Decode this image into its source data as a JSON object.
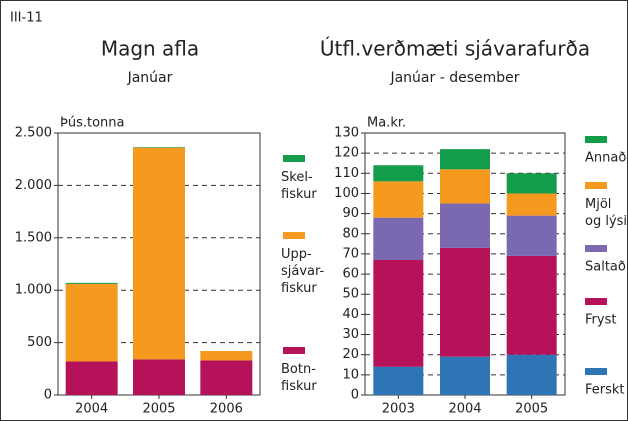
{
  "label": "III-11",
  "chart_data": [
    {
      "type": "bar",
      "stacked": true,
      "title": "Magn afla",
      "subtitle": "Janúar",
      "y_label": "Þús.tonna",
      "categories": [
        "2004",
        "2005",
        "2006"
      ],
      "series": [
        {
          "name": "Botn- fiskur",
          "color": "#b5125a",
          "values": [
            320,
            340,
            330
          ]
        },
        {
          "name": "Upp- sjávar- fiskur",
          "color": "#f59a1f",
          "values": [
            740,
            2020,
            90
          ]
        },
        {
          "name": "Skel- fiskur",
          "color": "#139c4a",
          "values": [
            10,
            5,
            0
          ]
        }
      ],
      "ylim": [
        0,
        2500
      ],
      "yticks": [
        0,
        500,
        {
          "value": 1000,
          "label": "1.000"
        },
        {
          "value": 1500,
          "label": "1.500"
        },
        {
          "value": 2000,
          "label": "2.000"
        },
        {
          "value": 2500,
          "label": "2.500"
        }
      ],
      "grid": true
    },
    {
      "type": "bar",
      "stacked": true,
      "title": "Útfl.verðmæti sjávarafurða",
      "subtitle": "Janúar - desember",
      "y_label": "Ma.kr.",
      "categories": [
        "2003",
        "2004",
        "2005"
      ],
      "series": [
        {
          "name": "Ferskt",
          "color": "#2e75b6",
          "values": [
            14,
            19,
            20
          ]
        },
        {
          "name": "Fryst",
          "color": "#b5125a",
          "values": [
            53,
            54,
            49
          ]
        },
        {
          "name": "Saltað",
          "color": "#7a68b0",
          "values": [
            21,
            22,
            20
          ]
        },
        {
          "name": "Mjöl og lýsi",
          "color": "#f59a1f",
          "values": [
            18,
            17,
            11
          ]
        },
        {
          "name": "Annað",
          "color": "#139c4a",
          "values": [
            8,
            10,
            10
          ]
        }
      ],
      "ylim": [
        0,
        130
      ],
      "yticks": [
        0,
        10,
        20,
        30,
        40,
        50,
        60,
        70,
        80,
        90,
        100,
        110,
        120,
        130
      ],
      "grid": true
    }
  ]
}
